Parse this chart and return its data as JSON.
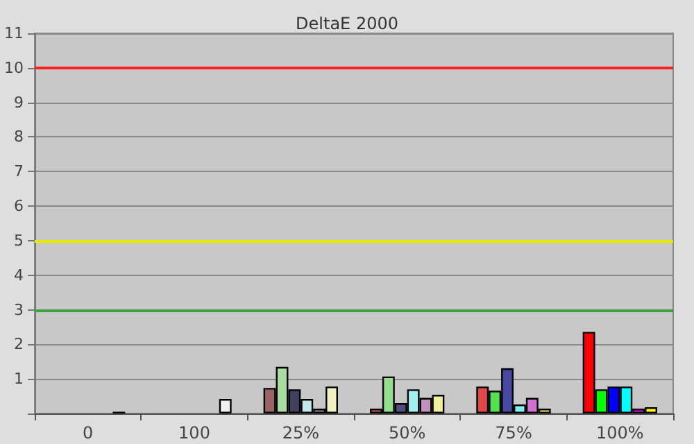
{
  "chart_data": {
    "type": "bar",
    "title": "DeltaE 2000",
    "categories": [
      "0",
      "100",
      "25%",
      "50%",
      "75%",
      "100%"
    ],
    "series": [
      {
        "colors": [
          null,
          null,
          "#9a6464",
          "#c86464",
          "#e04848",
          "#ff0000"
        ],
        "values": [
          null,
          null,
          0.74,
          0.14,
          0.78,
          2.36
        ]
      },
      {
        "colors": [
          null,
          null,
          "#a8dca0",
          "#90e090",
          "#50e050",
          "#00ff00"
        ],
        "values": [
          null,
          null,
          1.35,
          1.07,
          0.66,
          0.7
        ]
      },
      {
        "colors": [
          null,
          null,
          "#404060",
          "#505080",
          "#4848a0",
          "#0000ff"
        ],
        "values": [
          null,
          null,
          0.7,
          0.3,
          1.31,
          0.78
        ]
      },
      {
        "colors": [
          null,
          null,
          "#c0e8e8",
          "#a0f0f0",
          "#80f0f0",
          "#00ffff"
        ],
        "values": [
          null,
          null,
          0.42,
          0.7,
          0.26,
          0.78
        ]
      },
      {
        "colors": [
          null,
          null,
          "#a080a0",
          "#c090c0",
          "#d070d0",
          "#ff00ff"
        ],
        "values": [
          null,
          null,
          0.14,
          0.45,
          0.45,
          0.14
        ]
      },
      {
        "colors": [
          "#404040",
          "#f0f0f0",
          "#f0f0c0",
          "#f0f0a0",
          "#f0f060",
          "#ffff00"
        ],
        "values": [
          0.05,
          0.42,
          0.78,
          0.54,
          0.14,
          0.18
        ]
      }
    ],
    "ylim": [
      0,
      11
    ],
    "yticks": [
      {
        "value": 0,
        "label": null
      },
      1,
      2,
      3,
      4,
      5,
      6,
      7,
      8,
      9,
      10,
      11
    ],
    "grid": "y",
    "ref_lines": [
      {
        "axis": "y",
        "value": 10,
        "color": "#ff2020"
      },
      {
        "axis": "y",
        "value": 5,
        "color": "#e8e800"
      },
      {
        "axis": "y",
        "value": 3,
        "color": "#40a040"
      }
    ]
  }
}
